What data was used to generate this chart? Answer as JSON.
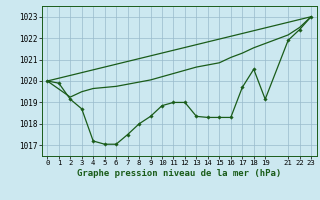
{
  "title": "Graphe pression niveau de la mer (hPa)",
  "bg_color": "#cce8f0",
  "line_color": "#1a5c1a",
  "grid_color": "#99bbcc",
  "xlim": [
    -0.5,
    23.5
  ],
  "ylim": [
    1016.5,
    1023.5
  ],
  "yticks": [
    1017,
    1018,
    1019,
    1020,
    1021,
    1022,
    1023
  ],
  "xticks": [
    0,
    1,
    2,
    3,
    4,
    5,
    6,
    7,
    8,
    9,
    10,
    11,
    12,
    13,
    14,
    15,
    16,
    17,
    18,
    19,
    21,
    22,
    23
  ],
  "series1_x": [
    0,
    1,
    2,
    3,
    4,
    5,
    6,
    7,
    8,
    9,
    10,
    11,
    12,
    13,
    14,
    15,
    16,
    17,
    18,
    19,
    21,
    22,
    23
  ],
  "series1_y": [
    1020.0,
    1019.9,
    1019.15,
    1018.7,
    1017.2,
    1017.05,
    1017.05,
    1017.5,
    1018.0,
    1018.35,
    1018.85,
    1019.0,
    1019.0,
    1018.35,
    1018.3,
    1018.3,
    1018.3,
    1019.7,
    1020.55,
    1019.15,
    1021.9,
    1022.4,
    1023.0
  ],
  "series2_x": [
    0,
    23
  ],
  "series2_y": [
    1020.0,
    1023.0
  ],
  "series3_x": [
    0,
    2,
    3,
    4,
    5,
    6,
    7,
    8,
    9,
    10,
    11,
    12,
    13,
    14,
    15,
    16,
    17,
    18,
    19,
    21,
    22,
    23
  ],
  "series3_y": [
    1020.0,
    1019.25,
    1019.5,
    1019.65,
    1019.7,
    1019.75,
    1019.85,
    1019.95,
    1020.05,
    1020.2,
    1020.35,
    1020.5,
    1020.65,
    1020.75,
    1020.85,
    1021.1,
    1021.3,
    1021.55,
    1021.75,
    1022.15,
    1022.5,
    1023.0
  ]
}
